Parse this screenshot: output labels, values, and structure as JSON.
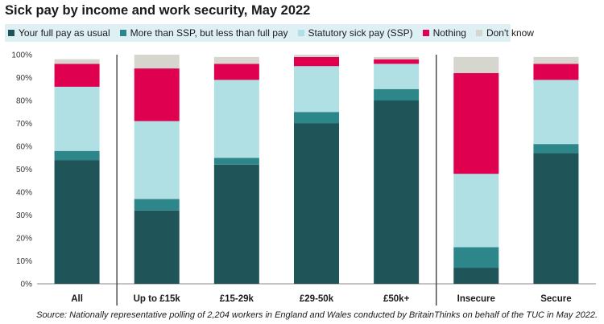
{
  "title": "Sick pay by income and work security, May 2022",
  "source": "Source: Nationally representative polling of 2,204 workers in England and Wales conducted by BritainThinks on behalf of the TUC in May 2022.",
  "chart_data": {
    "type": "bar",
    "stacked": true,
    "title": "Sick pay by income and work security, May 2022",
    "xlabel": "",
    "ylabel": "",
    "ylim": [
      0,
      100
    ],
    "y_ticks": [
      "0%",
      "10%",
      "20%",
      "30%",
      "40%",
      "50%",
      "60%",
      "70%",
      "80%",
      "90%",
      "100%"
    ],
    "grid": false,
    "legend_position": "top",
    "categories": [
      "All",
      "Up to £15k",
      "£15-29k",
      "£29-50k",
      "£50k+",
      "Insecure",
      "Secure"
    ],
    "group_separators_after": [
      0,
      4
    ],
    "series": [
      {
        "name": "Your full pay as usual",
        "color": "#1f5459",
        "values": [
          54,
          32,
          52,
          70,
          80,
          7,
          57
        ]
      },
      {
        "name": "More than SSP, but less than full pay",
        "color": "#2d868a",
        "values": [
          4,
          5,
          3,
          5,
          5,
          9,
          4
        ]
      },
      {
        "name": "Statutory sick pay (SSP)",
        "color": "#b1e0e4",
        "values": [
          28,
          34,
          34,
          20,
          11,
          32,
          28
        ]
      },
      {
        "name": "Nothing",
        "color": "#df004f",
        "values": [
          10,
          23,
          7,
          4,
          2,
          44,
          7
        ]
      },
      {
        "name": "Don't know",
        "color": "#d6d6ce",
        "values": [
          2,
          6,
          3,
          1,
          1,
          7,
          3
        ]
      }
    ]
  }
}
